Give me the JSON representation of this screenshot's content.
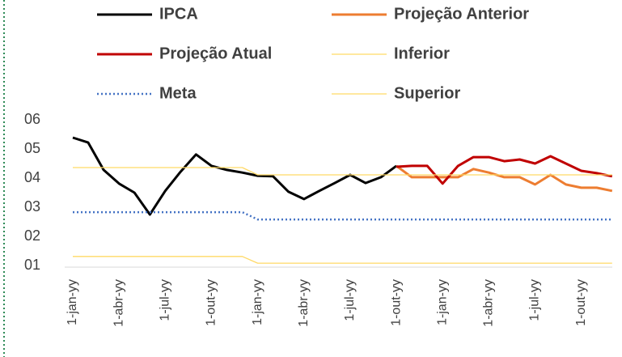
{
  "chart_data": {
    "type": "line",
    "categories": [
      "1-jan-yy",
      null,
      null,
      "1-abr-yy",
      null,
      null,
      "1-jul-yy",
      null,
      null,
      "1-out-yy",
      null,
      null,
      "1-jan-yy",
      null,
      null,
      "1-abr-yy",
      null,
      null,
      "1-jul-yy",
      null,
      null,
      "1-out-yy",
      null,
      null,
      "1-jan-yy",
      null,
      null,
      "1-abr-yy",
      null,
      null,
      "1-jul-yy",
      null,
      null,
      "1-out-yy",
      null,
      null
    ],
    "series": [
      {
        "name": "IPCA",
        "color": "#000000",
        "values": [
          5.39,
          5.22,
          4.28,
          3.81,
          3.5,
          2.75,
          3.56,
          4.22,
          4.81,
          4.42,
          4.28,
          4.19,
          4.08,
          4.06,
          3.53,
          3.28,
          3.56,
          3.83,
          4.11,
          3.83,
          4.03,
          4.42,
          null,
          null,
          null,
          null,
          null,
          null,
          null,
          null,
          null,
          null,
          null,
          null,
          null,
          null
        ]
      },
      {
        "name": "Projeção Anterior",
        "color": "#ED7D31",
        "values": [
          null,
          null,
          null,
          null,
          null,
          null,
          null,
          null,
          null,
          null,
          null,
          null,
          null,
          null,
          null,
          null,
          null,
          null,
          null,
          null,
          null,
          4.42,
          4.03,
          4.03,
          4.03,
          4.03,
          4.31,
          4.19,
          4.03,
          4.03,
          3.78,
          4.11,
          3.78,
          3.67,
          3.67,
          3.56
        ]
      },
      {
        "name": "Projeção Atual",
        "color": "#C00000",
        "values": [
          null,
          null,
          null,
          null,
          null,
          null,
          null,
          null,
          null,
          null,
          null,
          null,
          null,
          null,
          null,
          null,
          null,
          null,
          null,
          null,
          null,
          4.39,
          4.42,
          4.42,
          3.81,
          4.42,
          4.72,
          4.72,
          4.58,
          4.64,
          4.5,
          4.75,
          4.5,
          4.25,
          4.17,
          4.06
        ]
      },
      {
        "name": "Inferior",
        "color": "#FFD966",
        "values": [
          1.31,
          1.31,
          1.31,
          1.31,
          1.31,
          1.31,
          1.31,
          1.31,
          1.31,
          1.31,
          1.31,
          1.31,
          1.08,
          1.08,
          1.08,
          1.08,
          1.08,
          1.08,
          1.08,
          1.08,
          1.08,
          1.08,
          1.08,
          1.08,
          1.08,
          1.08,
          1.08,
          1.08,
          1.08,
          1.08,
          1.08,
          1.08,
          1.08,
          1.08,
          1.08,
          1.08
        ]
      },
      {
        "name": "Meta",
        "color": "#4472C4",
        "line_style": "dotted",
        "values": [
          2.83,
          2.83,
          2.83,
          2.83,
          2.83,
          2.83,
          2.83,
          2.83,
          2.83,
          2.83,
          2.83,
          2.83,
          2.58,
          2.58,
          2.58,
          2.58,
          2.58,
          2.58,
          2.58,
          2.58,
          2.58,
          2.58,
          2.58,
          2.58,
          2.58,
          2.58,
          2.58,
          2.58,
          2.58,
          2.58,
          2.58,
          2.58,
          2.58,
          2.58,
          2.58,
          2.58
        ]
      },
      {
        "name": "Superior",
        "color": "#FFD966",
        "values": [
          4.36,
          4.36,
          4.36,
          4.36,
          4.36,
          4.36,
          4.36,
          4.36,
          4.36,
          4.36,
          4.36,
          4.36,
          4.11,
          4.11,
          4.11,
          4.11,
          4.11,
          4.11,
          4.11,
          4.11,
          4.11,
          4.11,
          4.11,
          4.11,
          4.11,
          4.11,
          4.11,
          4.11,
          4.11,
          4.11,
          4.11,
          4.11,
          4.11,
          4.11,
          4.11,
          4.11
        ]
      }
    ],
    "ylim": [
      1,
      6
    ],
    "yticks": [
      {
        "value": 1,
        "label": "01"
      },
      {
        "value": 2,
        "label": "02"
      },
      {
        "value": 3,
        "label": "03"
      },
      {
        "value": 4,
        "label": "04"
      },
      {
        "value": 5,
        "label": "05"
      },
      {
        "value": 6,
        "label": "06"
      }
    ],
    "grid": false
  }
}
